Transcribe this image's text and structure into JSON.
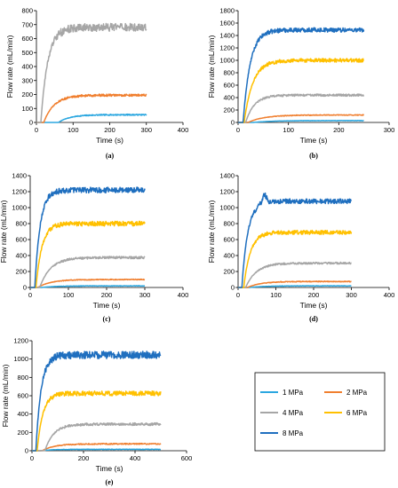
{
  "figure": {
    "legend_entries": [
      {
        "name": "1 MPa",
        "color": "#2BA7E0"
      },
      {
        "name": "2 MPa",
        "color": "#F07F2F"
      },
      {
        "name": "4 MPa",
        "color": "#A6A6A6"
      },
      {
        "name": "6 MPa",
        "color": "#FFC000"
      },
      {
        "name": "8 MPa",
        "color": "#1F6FBF"
      }
    ]
  },
  "chart_data": [
    {
      "type": "line",
      "panel_label": "(a)",
      "xlabel": "Time (s)",
      "ylabel": "Flow rate (mL/min)",
      "xlim": [
        0,
        400
      ],
      "ylim": [
        0,
        800
      ],
      "xticks": [
        0,
        100,
        200,
        300,
        400
      ],
      "yticks": [
        0,
        100,
        200,
        300,
        400,
        500,
        600,
        700,
        800
      ],
      "grid": false,
      "series": [
        {
          "name": "1 MPa",
          "color": "#2BA7E0",
          "onset": 60,
          "rise": 100,
          "plateau": 55,
          "noise": 4,
          "end": 300,
          "peak": null
        },
        {
          "name": "2 MPa",
          "color": "#F07F2F",
          "onset": 20,
          "rise": 90,
          "plateau": 195,
          "noise": 8,
          "end": 300,
          "peak": null
        },
        {
          "name": "4 MPa",
          "color": "#A6A6A6",
          "onset": 12,
          "rise": 60,
          "plateau": 680,
          "noise": 28,
          "end": 300,
          "peak": null
        }
      ]
    },
    {
      "type": "line",
      "panel_label": "(b)",
      "xlabel": "Time (s)",
      "ylabel": "Flow rate (mL/min)",
      "xlim": [
        0,
        300
      ],
      "ylim": [
        0,
        1800
      ],
      "xticks": [
        0,
        100,
        200,
        300
      ],
      "yticks": [
        0,
        200,
        400,
        600,
        800,
        1000,
        1200,
        1400,
        1600,
        1800
      ],
      "grid": false,
      "series": [
        {
          "name": "1 MPa",
          "color": "#2BA7E0",
          "onset": 30,
          "rise": 120,
          "plateau": 30,
          "noise": 3,
          "end": 250,
          "peak": null
        },
        {
          "name": "2 MPa",
          "color": "#F07F2F",
          "onset": 20,
          "rise": 100,
          "plateau": 120,
          "noise": 6,
          "end": 250,
          "peak": null
        },
        {
          "name": "4 MPa",
          "color": "#A6A6A6",
          "onset": 15,
          "rise": 55,
          "plateau": 440,
          "noise": 18,
          "end": 250,
          "peak": null
        },
        {
          "name": "6 MPa",
          "color": "#FFC000",
          "onset": 12,
          "rise": 55,
          "plateau": 1000,
          "noise": 30,
          "end": 250,
          "peak": null
        },
        {
          "name": "8 MPa",
          "color": "#1F6FBF",
          "onset": 10,
          "rise": 45,
          "plateau": 1490,
          "noise": 35,
          "end": 250,
          "peak": null
        }
      ]
    },
    {
      "type": "line",
      "panel_label": "(c)",
      "xlabel": "Time (s)",
      "ylabel": "Flow rate (mL/min)",
      "xlim": [
        0,
        400
      ],
      "ylim": [
        0,
        1400
      ],
      "xticks": [
        0,
        100,
        200,
        300,
        400
      ],
      "yticks": [
        0,
        200,
        400,
        600,
        800,
        1000,
        1200,
        1400
      ],
      "grid": false,
      "series": [
        {
          "name": "1 MPa",
          "color": "#2BA7E0",
          "onset": 30,
          "rise": 120,
          "plateau": 20,
          "noise": 3,
          "end": 300,
          "peak": null
        },
        {
          "name": "2 MPa",
          "color": "#F07F2F",
          "onset": 20,
          "rise": 110,
          "plateau": 100,
          "noise": 5,
          "end": 300,
          "peak": null
        },
        {
          "name": "4 MPa",
          "color": "#A6A6A6",
          "onset": 25,
          "rise": 90,
          "plateau": 375,
          "noise": 15,
          "end": 300,
          "peak": null
        },
        {
          "name": "6 MPa",
          "color": "#FFC000",
          "onset": 15,
          "rise": 50,
          "plateau": 800,
          "noise": 30,
          "end": 300,
          "peak": null
        },
        {
          "name": "8 MPa",
          "color": "#1F6FBF",
          "onset": 12,
          "rise": 45,
          "plateau": 1220,
          "noise": 35,
          "end": 300,
          "peak": null
        }
      ]
    },
    {
      "type": "line",
      "panel_label": "(d)",
      "xlabel": "Time (s)",
      "ylabel": "Flow rate (mL/min)",
      "xlim": [
        0,
        400
      ],
      "ylim": [
        0,
        1400
      ],
      "xticks": [
        0,
        100,
        200,
        300,
        400
      ],
      "yticks": [
        0,
        200,
        400,
        600,
        800,
        1000,
        1200,
        1400
      ],
      "grid": false,
      "series": [
        {
          "name": "1 MPa",
          "color": "#2BA7E0",
          "onset": 30,
          "rise": 120,
          "plateau": 20,
          "noise": 3,
          "end": 300,
          "peak": null
        },
        {
          "name": "2 MPa",
          "color": "#F07F2F",
          "onset": 25,
          "rise": 110,
          "plateau": 75,
          "noise": 5,
          "end": 300,
          "peak": null
        },
        {
          "name": "4 MPa",
          "color": "#A6A6A6",
          "onset": 20,
          "rise": 90,
          "plateau": 305,
          "noise": 12,
          "end": 300,
          "peak": null
        },
        {
          "name": "6 MPa",
          "color": "#FFC000",
          "onset": 15,
          "rise": 55,
          "plateau": 690,
          "noise": 25,
          "end": 300,
          "peak": null
        },
        {
          "name": "8 MPa",
          "color": "#1F6FBF",
          "onset": 10,
          "rise": 50,
          "plateau": 1080,
          "noise": 30,
          "end": 300,
          "peak": [
            70,
            1180
          ]
        }
      ]
    },
    {
      "type": "line",
      "panel_label": "(e)",
      "xlabel": "Time (s)",
      "ylabel": "Flow rate (mL/min)",
      "xlim": [
        0,
        600
      ],
      "ylim": [
        0,
        1200
      ],
      "xticks": [
        0,
        200,
        400,
        600
      ],
      "yticks": [
        0,
        200,
        400,
        600,
        800,
        1000,
        1200
      ],
      "grid": false,
      "series": [
        {
          "name": "1 MPa",
          "color": "#2BA7E0",
          "onset": 30,
          "rise": 150,
          "plateau": 15,
          "noise": 3,
          "end": 500,
          "peak": null
        },
        {
          "name": "2 MPa",
          "color": "#F07F2F",
          "onset": 40,
          "rise": 150,
          "plateau": 75,
          "noise": 6,
          "end": 500,
          "peak": null
        },
        {
          "name": "4 MPa",
          "color": "#A6A6A6",
          "onset": 50,
          "rise": 110,
          "plateau": 290,
          "noise": 14,
          "end": 500,
          "peak": null
        },
        {
          "name": "6 MPa",
          "color": "#FFC000",
          "onset": 20,
          "rise": 70,
          "plateau": 625,
          "noise": 25,
          "end": 500,
          "peak": null
        },
        {
          "name": "8 MPa",
          "color": "#1F6FBF",
          "onset": 15,
          "rise": 65,
          "plateau": 1045,
          "noise": 40,
          "end": 500,
          "peak": null
        }
      ]
    }
  ]
}
